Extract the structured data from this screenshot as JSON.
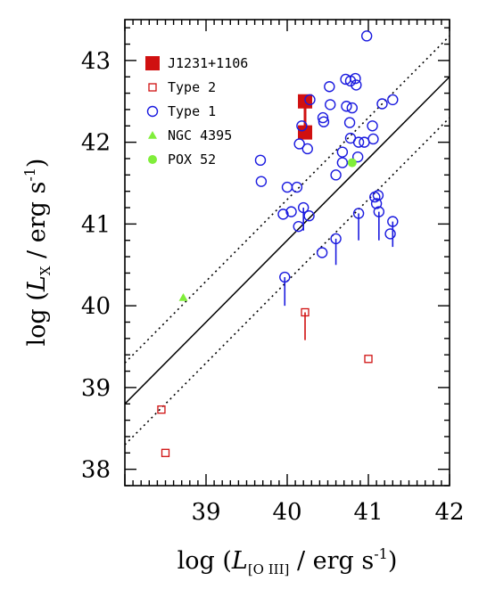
{
  "chart_data": {
    "type": "scatter",
    "xlabel_parts": {
      "open": "log (",
      "sym": "L",
      "sub": "[O III]",
      "close": " / erg s",
      "exp": "-1",
      "end": ")"
    },
    "ylabel_parts": {
      "open": "log (",
      "sym": "L",
      "sub": "X",
      "close": " / erg s",
      "exp": "-1",
      "end": ")"
    },
    "xlim": [
      38.0,
      42.0
    ],
    "ylim": [
      37.8,
      43.5
    ],
    "xticks": [
      39,
      40,
      41,
      42
    ],
    "yticks": [
      38,
      39,
      40,
      41,
      42,
      43
    ],
    "colors": {
      "red": "#d01010",
      "blue": "#1a1adf",
      "green": "#80ee3a",
      "black": "#000000"
    },
    "lines": [
      {
        "style": "solid",
        "slope": 1.0,
        "intercept": 0.8
      },
      {
        "style": "dotted",
        "slope": 1.0,
        "intercept": 1.3
      },
      {
        "style": "dotted",
        "slope": 1.0,
        "intercept": 0.3
      }
    ],
    "series": [
      {
        "name": "J1231+1106",
        "marker": "filled-square",
        "color": "#d01010",
        "points": [
          [
            40.22,
            42.5
          ],
          [
            40.22,
            42.12
          ]
        ],
        "errorbar": {
          "x": 40.22,
          "y_from": 42.12,
          "y_to": 42.5
        }
      },
      {
        "name": "Type 2",
        "marker": "open-square",
        "color": "#d01010",
        "points": [
          [
            38.45,
            38.73
          ],
          [
            38.5,
            38.2
          ],
          [
            40.22,
            39.92
          ],
          [
            41.0,
            39.35
          ]
        ],
        "limits": [
          {
            "x": 40.22,
            "y": 39.92,
            "to": 39.58
          }
        ]
      },
      {
        "name": "Type 1",
        "marker": "open-circle",
        "color": "#1a1adf",
        "points": [
          [
            40.98,
            43.3
          ],
          [
            40.72,
            42.77
          ],
          [
            40.78,
            42.75
          ],
          [
            40.84,
            42.78
          ],
          [
            40.85,
            42.7
          ],
          [
            40.28,
            42.52
          ],
          [
            40.52,
            42.68
          ],
          [
            41.3,
            42.52
          ],
          [
            41.17,
            42.47
          ],
          [
            40.73,
            42.44
          ],
          [
            40.8,
            42.42
          ],
          [
            40.53,
            42.46
          ],
          [
            40.44,
            42.3
          ],
          [
            40.45,
            42.25
          ],
          [
            40.18,
            42.2
          ],
          [
            40.77,
            42.24
          ],
          [
            41.05,
            42.2
          ],
          [
            40.78,
            42.05
          ],
          [
            40.88,
            42.0
          ],
          [
            40.95,
            42.0
          ],
          [
            41.06,
            42.04
          ],
          [
            40.15,
            41.98
          ],
          [
            40.25,
            41.92
          ],
          [
            40.68,
            41.88
          ],
          [
            40.87,
            41.82
          ],
          [
            39.67,
            41.78
          ],
          [
            40.68,
            41.75
          ],
          [
            40.6,
            41.6
          ],
          [
            39.68,
            41.52
          ],
          [
            40.0,
            41.45
          ],
          [
            40.12,
            41.45
          ],
          [
            41.08,
            41.33
          ],
          [
            41.12,
            41.35
          ],
          [
            41.1,
            41.25
          ],
          [
            40.2,
            41.2
          ],
          [
            41.13,
            41.15
          ],
          [
            40.05,
            41.15
          ],
          [
            39.95,
            41.12
          ],
          [
            40.27,
            41.1
          ],
          [
            40.88,
            41.13
          ],
          [
            41.3,
            41.03
          ],
          [
            40.14,
            40.97
          ],
          [
            41.27,
            40.88
          ],
          [
            40.6,
            40.82
          ],
          [
            40.43,
            40.65
          ],
          [
            39.97,
            40.35
          ]
        ],
        "limits": [
          {
            "x": 39.97,
            "y": 40.35,
            "to": 40.0
          },
          {
            "x": 40.6,
            "y": 40.82,
            "to": 40.5
          },
          {
            "x": 40.88,
            "y": 41.13,
            "to": 40.8
          },
          {
            "x": 41.13,
            "y": 41.15,
            "to": 40.8
          },
          {
            "x": 41.3,
            "y": 41.03,
            "to": 40.72
          },
          {
            "x": 40.2,
            "y": 41.2,
            "to": 40.92
          }
        ]
      },
      {
        "name": "NGC 4395",
        "marker": "filled-triangle",
        "color": "#80ee3a",
        "points": [
          [
            38.72,
            40.1
          ]
        ]
      },
      {
        "name": "POX 52",
        "marker": "filled-circle",
        "color": "#80ee3a",
        "points": [
          [
            40.8,
            41.75
          ]
        ]
      }
    ],
    "legend": {
      "placement": "top-left"
    }
  }
}
